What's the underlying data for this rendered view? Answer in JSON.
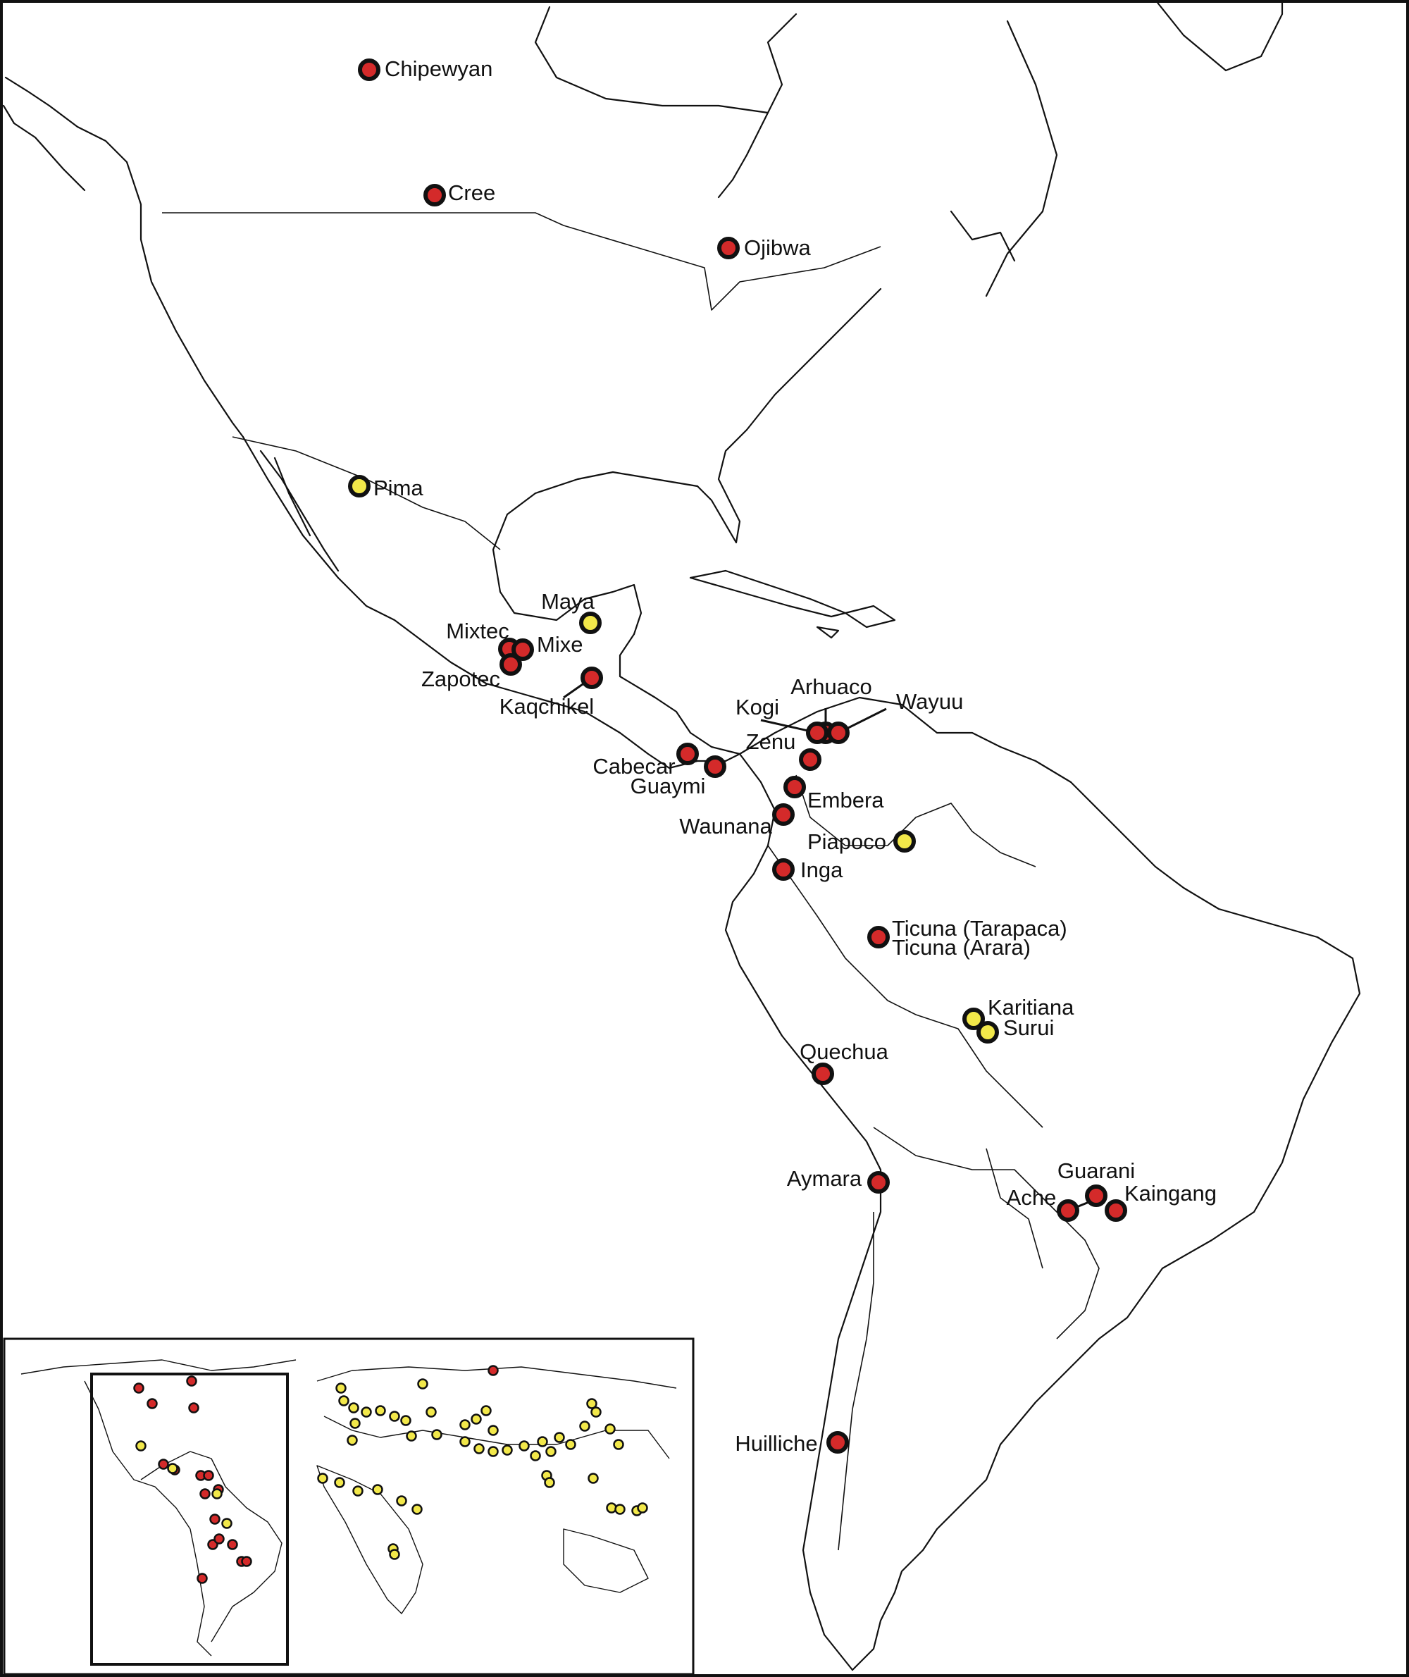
{
  "legend_colors": {
    "red": "#d42a2a",
    "yellow": "#f2e84a",
    "outline": "#111111"
  },
  "populations": [
    {
      "name": "Chipewyan",
      "color": "red"
    },
    {
      "name": "Cree",
      "color": "red"
    },
    {
      "name": "Ojibwa",
      "color": "red"
    },
    {
      "name": "Pima",
      "color": "yellow"
    },
    {
      "name": "Maya",
      "color": "yellow"
    },
    {
      "name": "Mixtec",
      "color": "red"
    },
    {
      "name": "Mixe",
      "color": "red"
    },
    {
      "name": "Zapotec",
      "color": "red"
    },
    {
      "name": "Kaqchikel",
      "color": "red"
    },
    {
      "name": "Arhuaco",
      "color": "red"
    },
    {
      "name": "Kogi",
      "color": "red"
    },
    {
      "name": "Wayuu",
      "color": "red"
    },
    {
      "name": "Zenu",
      "color": "red"
    },
    {
      "name": "Cabecar",
      "color": "red"
    },
    {
      "name": "Guaymi",
      "color": "red"
    },
    {
      "name": "Embera",
      "color": "red"
    },
    {
      "name": "Waunana",
      "color": "red"
    },
    {
      "name": "Piapoco",
      "color": "yellow"
    },
    {
      "name": "Inga",
      "color": "red"
    },
    {
      "name": "Ticuna (Tarapaca)",
      "color": "red"
    },
    {
      "name": "Ticuna (Arara)",
      "color": "red"
    },
    {
      "name": "Karitiana",
      "color": "yellow"
    },
    {
      "name": "Surui",
      "color": "yellow"
    },
    {
      "name": "Quechua",
      "color": "red"
    },
    {
      "name": "Aymara",
      "color": "red"
    },
    {
      "name": "Guarani",
      "color": "red"
    },
    {
      "name": "Ache",
      "color": "red"
    },
    {
      "name": "Kaingang",
      "color": "red"
    },
    {
      "name": "Huilliche",
      "color": "red"
    }
  ]
}
